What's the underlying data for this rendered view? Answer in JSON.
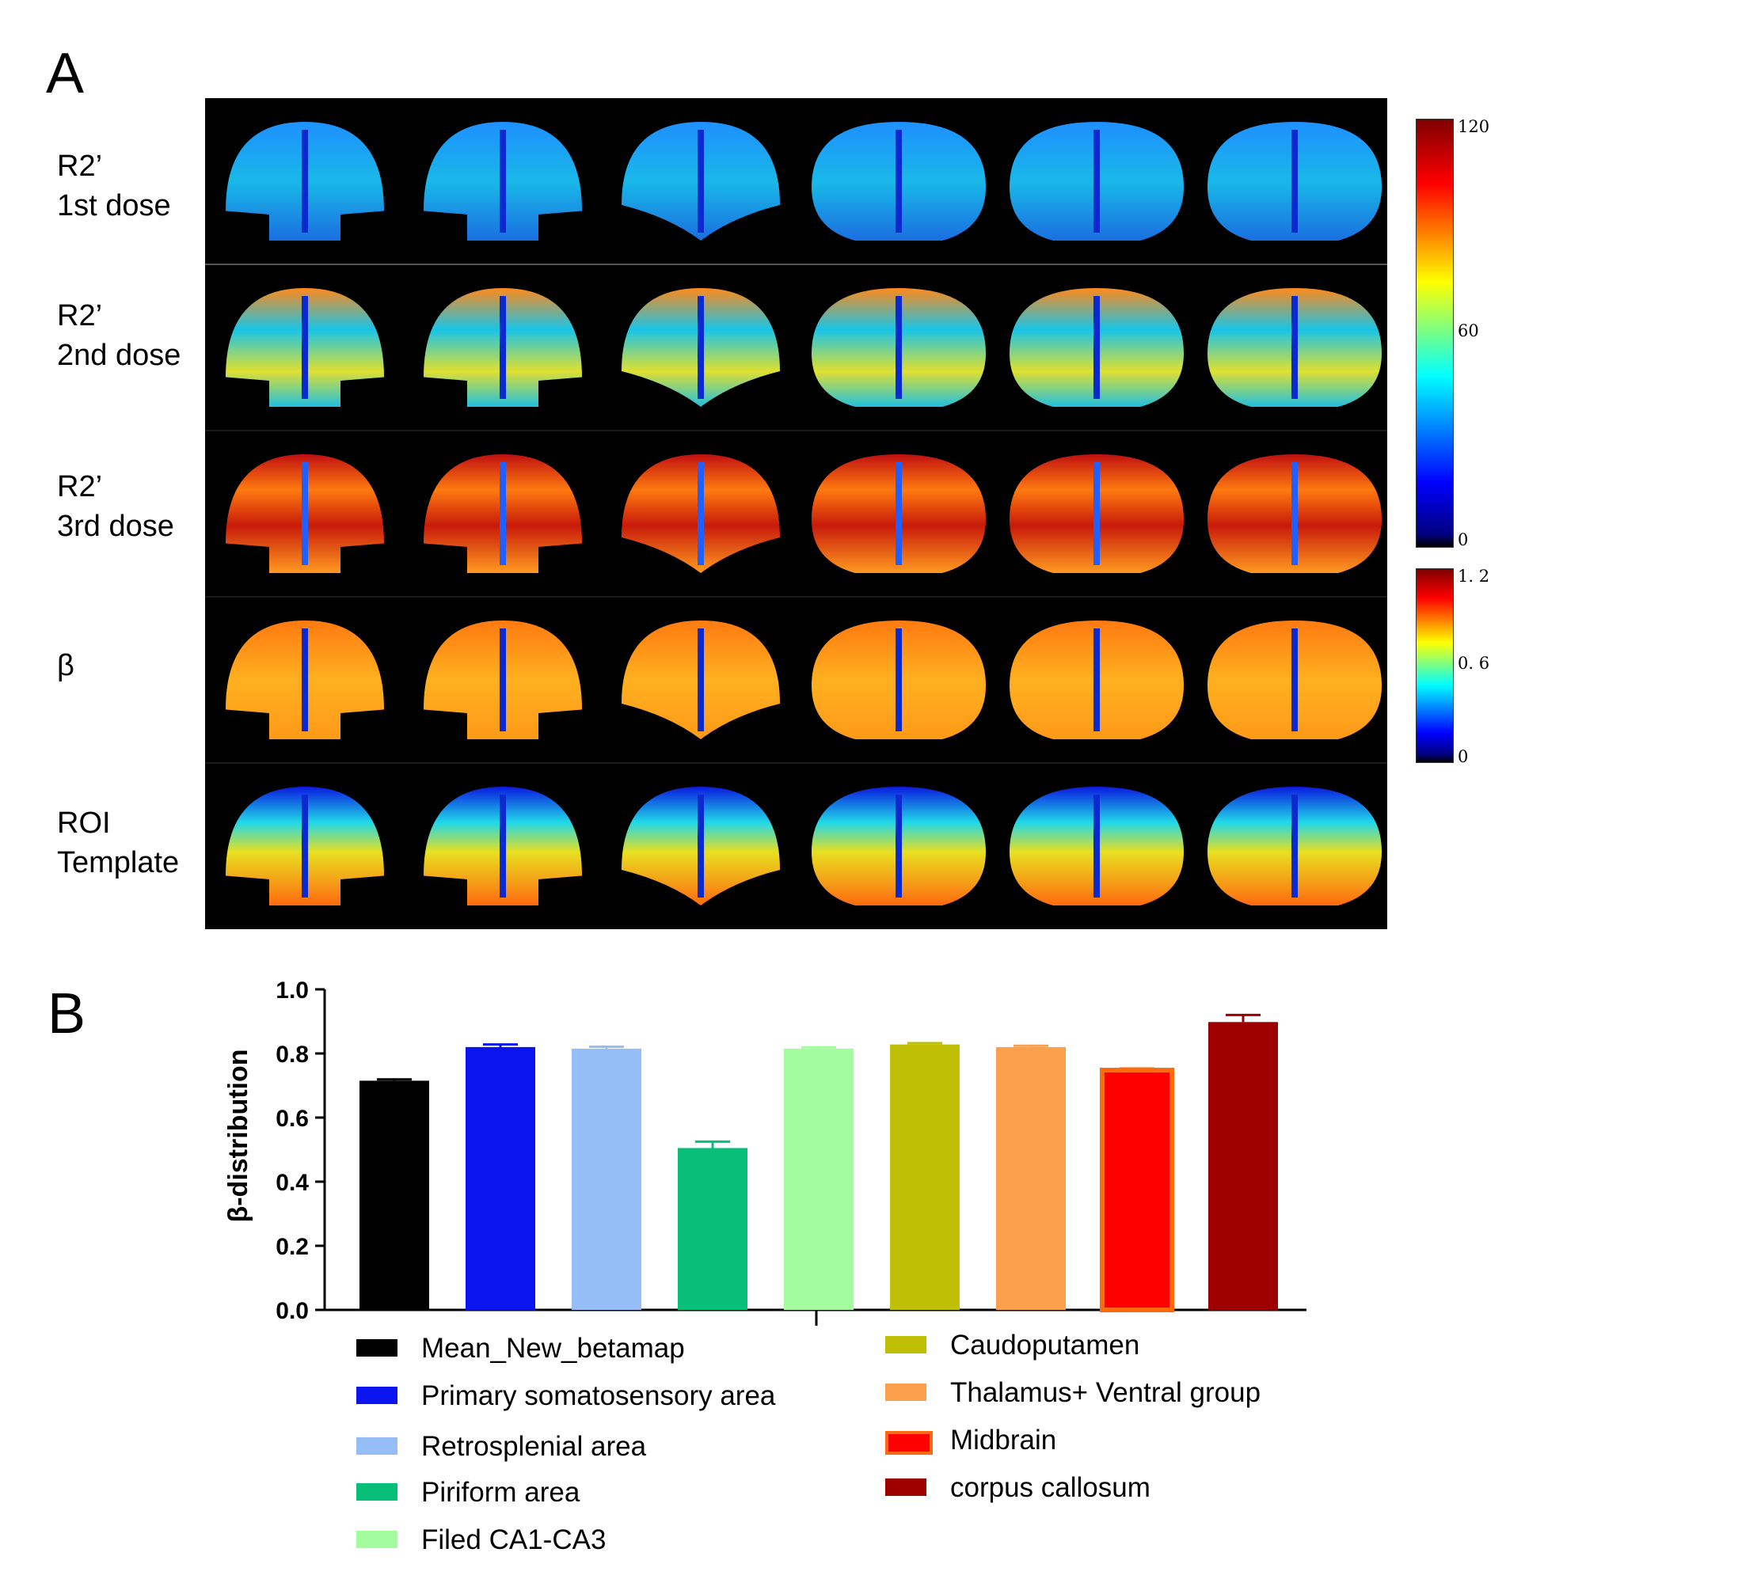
{
  "panels": {
    "a_label": "A",
    "b_label": "B"
  },
  "row_labels": [
    "R2’\n1st dose",
    "R2’\n2nd dose",
    "R2’\n3rd dose",
    "β",
    "ROI\nTemplate"
  ],
  "colorbars": [
    {
      "ticks": [
        "120",
        "60",
        "0"
      ],
      "colormap": "jet"
    },
    {
      "ticks": [
        "1. 2",
        "0. 6",
        "0"
      ],
      "colormap": "jet"
    }
  ],
  "chart_data": {
    "type": "bar",
    "ylabel": "β-distribution",
    "ylim": [
      0,
      1.0
    ],
    "yticks": [
      "0.0",
      "0.2",
      "0.4",
      "0.6",
      "0.8",
      "1.0"
    ],
    "categories": [
      "Mean_New_betamap",
      "Primary somatosensory area",
      "Retrosplenial area",
      "Piriform area",
      "Filed CA1-CA3",
      " Caudoputamen",
      "Thalamus+ Ventral group",
      "Midbrain",
      "corpus callosum"
    ],
    "values": [
      0.715,
      0.82,
      0.815,
      0.505,
      0.815,
      0.828,
      0.82,
      0.748,
      0.898
    ],
    "errors": [
      0.004,
      0.008,
      0.006,
      0.02,
      0.004,
      0.004,
      0.004,
      0.005,
      0.022
    ],
    "colors": [
      "#000000",
      "#0a14ee",
      "#94bef5",
      "#08bf7a",
      "#a3fc9d",
      "#bfbf05",
      "#fba14e",
      "#ff0000",
      "#9e0000"
    ],
    "legend": "bottom"
  }
}
